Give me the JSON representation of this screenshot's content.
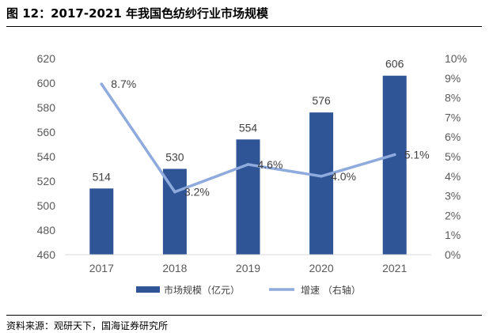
{
  "figure": {
    "title": "图 12：2017-2021 年我国色纺纱行业市场规模",
    "source": "资料来源：观研天下，国海证券研究所"
  },
  "chart_data": {
    "type": "bar",
    "categories": [
      "2017",
      "2018",
      "2019",
      "2020",
      "2021"
    ],
    "series": [
      {
        "name": "市场规模（亿元）",
        "type": "bar",
        "axis": "left",
        "values": [
          514,
          530,
          554,
          576,
          606
        ],
        "labels": [
          "514",
          "530",
          "554",
          "576",
          "606"
        ],
        "color": "#2F5597"
      },
      {
        "name": "增速 （右轴）",
        "type": "line",
        "axis": "right",
        "values": [
          8.7,
          3.2,
          4.6,
          4.0,
          5.1
        ],
        "labels": [
          "8.7%",
          "3.2%",
          "4.6%",
          "4.0%",
          "5.1%"
        ],
        "color": "#8FAADC"
      }
    ],
    "y_left": {
      "min": 460,
      "max": 620,
      "step": 20,
      "ticks": [
        "460",
        "480",
        "500",
        "520",
        "540",
        "560",
        "580",
        "600",
        "620"
      ]
    },
    "y_right": {
      "min": 0,
      "max": 10,
      "step": 1,
      "ticks": [
        "0%",
        "1%",
        "2%",
        "3%",
        "4%",
        "5%",
        "6%",
        "7%",
        "8%",
        "9%",
        "10%"
      ]
    },
    "grid": false,
    "legend_position": "bottom"
  }
}
